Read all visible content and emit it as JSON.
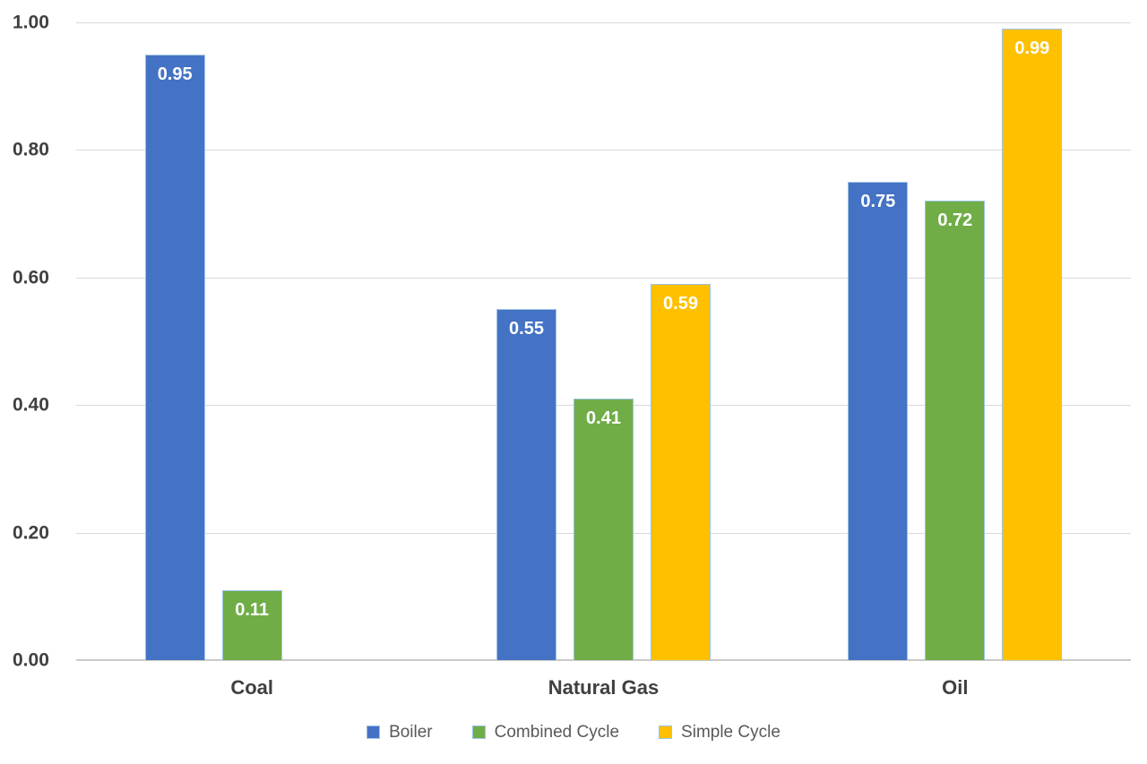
{
  "chart_data": {
    "type": "bar",
    "title": "",
    "xlabel": "",
    "ylabel": "",
    "categories": [
      "Coal",
      "Natural Gas",
      "Oil"
    ],
    "series": [
      {
        "name": "Boiler",
        "color": "#4472C4",
        "values": [
          0.95,
          0.55,
          0.75
        ],
        "labels": [
          "0.95",
          "0.55",
          "0.75"
        ]
      },
      {
        "name": "Combined Cycle",
        "color": "#70AD47",
        "values": [
          0.11,
          0.41,
          0.72
        ],
        "labels": [
          "0.11",
          "0.41",
          "0.72"
        ]
      },
      {
        "name": "Simple Cycle",
        "color": "#FFC000",
        "values": [
          null,
          0.59,
          0.99
        ],
        "labels": [
          null,
          "0.59",
          "0.99"
        ]
      }
    ],
    "ylim": [
      0,
      1
    ],
    "y_ticks": [
      "1.00",
      "0.80",
      "0.60",
      "0.40",
      "0.20",
      "0.00"
    ],
    "y_tick_values": [
      1.0,
      0.8,
      0.6,
      0.4,
      0.2,
      0.0
    ],
    "grid": true,
    "legend_position": "bottom",
    "value_labels_inside_bars": true
  },
  "style_colors": {
    "bar_border": "#9DC3E6",
    "gridline": "#D9D9D9",
    "axis_line": "#C9C9C9",
    "tick_text": "#404040",
    "category_text": "#404040",
    "legend_text": "#595959",
    "value_label_text": "#FFFFFF",
    "background": "#FFFFFF"
  }
}
